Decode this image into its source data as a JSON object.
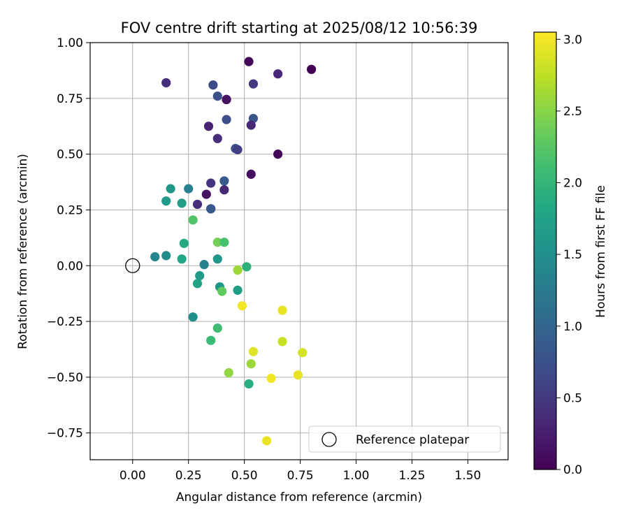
{
  "chart_data": {
    "type": "scatter",
    "title": "FOV centre drift starting at 2025/08/12 10:56:39",
    "xlabel": "Angular distance from reference (arcmin)",
    "ylabel": "Rotation from reference (arcmin)",
    "xlim": [
      -0.19,
      1.68
    ],
    "ylim": [
      -0.87,
      1.0
    ],
    "xticks": [
      "0.00",
      "0.25",
      "0.50",
      "0.75",
      "1.00",
      "1.25",
      "1.50"
    ],
    "xtick_values": [
      0,
      0.25,
      0.5,
      0.75,
      1.0,
      1.25,
      1.5
    ],
    "yticks": [
      "−0.75",
      "−0.50",
      "−0.25",
      "0.00",
      "0.25",
      "0.50",
      "0.75",
      "1.00"
    ],
    "ytick_values": [
      -0.75,
      -0.5,
      -0.25,
      0,
      0.25,
      0.5,
      0.75,
      1.0
    ],
    "grid": true,
    "colormap": "viridis",
    "colorbar": {
      "label": "Hours from first FF file",
      "range": [
        0,
        3.05
      ],
      "ticks": [
        "0.0",
        "0.5",
        "1.0",
        "1.5",
        "2.0",
        "2.5",
        "3.0"
      ],
      "tick_values": [
        0,
        0.5,
        1.0,
        1.5,
        2.0,
        2.5,
        3.0
      ]
    },
    "legend": {
      "label": "Reference platepar",
      "position": "lower-right"
    },
    "reference_point": {
      "x": 0.0,
      "y": 0.0
    },
    "points": [
      {
        "x": 0.52,
        "y": 0.915,
        "h": 0.05
      },
      {
        "x": 0.8,
        "y": 0.88,
        "h": 0.0
      },
      {
        "x": 0.65,
        "y": 0.86,
        "h": 0.35
      },
      {
        "x": 0.15,
        "y": 0.82,
        "h": 0.4
      },
      {
        "x": 0.54,
        "y": 0.815,
        "h": 0.5
      },
      {
        "x": 0.36,
        "y": 0.81,
        "h": 0.7
      },
      {
        "x": 0.38,
        "y": 0.76,
        "h": 0.75
      },
      {
        "x": 0.42,
        "y": 0.745,
        "h": 0.1
      },
      {
        "x": 0.42,
        "y": 0.745,
        "h": 0.15
      },
      {
        "x": 0.54,
        "y": 0.66,
        "h": 0.8
      },
      {
        "x": 0.42,
        "y": 0.655,
        "h": 0.75
      },
      {
        "x": 0.34,
        "y": 0.625,
        "h": 0.3
      },
      {
        "x": 0.53,
        "y": 0.63,
        "h": 0.35
      },
      {
        "x": 0.38,
        "y": 0.57,
        "h": 0.4
      },
      {
        "x": 0.46,
        "y": 0.525,
        "h": 0.75
      },
      {
        "x": 0.47,
        "y": 0.52,
        "h": 0.55
      },
      {
        "x": 0.65,
        "y": 0.5,
        "h": 0.05
      },
      {
        "x": 0.53,
        "y": 0.41,
        "h": 0.1
      },
      {
        "x": 0.41,
        "y": 0.38,
        "h": 0.85
      },
      {
        "x": 0.35,
        "y": 0.37,
        "h": 0.45
      },
      {
        "x": 0.17,
        "y": 0.345,
        "h": 1.6
      },
      {
        "x": 0.25,
        "y": 0.345,
        "h": 1.3
      },
      {
        "x": 0.41,
        "y": 0.34,
        "h": 0.35
      },
      {
        "x": 0.33,
        "y": 0.32,
        "h": 0.15
      },
      {
        "x": 0.15,
        "y": 0.29,
        "h": 1.65
      },
      {
        "x": 0.22,
        "y": 0.28,
        "h": 1.7
      },
      {
        "x": 0.29,
        "y": 0.275,
        "h": 0.4
      },
      {
        "x": 0.35,
        "y": 0.255,
        "h": 0.9
      },
      {
        "x": 0.35,
        "y": 0.255,
        "h": 0.85
      },
      {
        "x": 0.27,
        "y": 0.205,
        "h": 2.2
      },
      {
        "x": 0.38,
        "y": 0.105,
        "h": 2.4
      },
      {
        "x": 0.41,
        "y": 0.105,
        "h": 2.15
      },
      {
        "x": 0.23,
        "y": 0.1,
        "h": 1.85
      },
      {
        "x": 0.1,
        "y": 0.04,
        "h": 1.4
      },
      {
        "x": 0.15,
        "y": 0.045,
        "h": 1.45
      },
      {
        "x": 0.22,
        "y": 0.03,
        "h": 1.8
      },
      {
        "x": 0.38,
        "y": 0.03,
        "h": 1.6
      },
      {
        "x": 0.32,
        "y": 0.005,
        "h": 1.35
      },
      {
        "x": 0.51,
        "y": -0.005,
        "h": 1.95
      },
      {
        "x": 0.47,
        "y": -0.02,
        "h": 2.6
      },
      {
        "x": 0.3,
        "y": -0.045,
        "h": 1.65
      },
      {
        "x": 0.29,
        "y": -0.08,
        "h": 1.75
      },
      {
        "x": 0.39,
        "y": -0.095,
        "h": 1.6
      },
      {
        "x": 0.47,
        "y": -0.11,
        "h": 1.7
      },
      {
        "x": 0.4,
        "y": -0.115,
        "h": 2.3
      },
      {
        "x": 0.49,
        "y": -0.18,
        "h": 3.0
      },
      {
        "x": 0.67,
        "y": -0.2,
        "h": 2.95
      },
      {
        "x": 0.27,
        "y": -0.23,
        "h": 1.5
      },
      {
        "x": 0.38,
        "y": -0.28,
        "h": 2.1
      },
      {
        "x": 0.35,
        "y": -0.335,
        "h": 2.05
      },
      {
        "x": 0.67,
        "y": -0.34,
        "h": 2.8
      },
      {
        "x": 0.54,
        "y": -0.385,
        "h": 2.9
      },
      {
        "x": 0.76,
        "y": -0.39,
        "h": 2.85
      },
      {
        "x": 0.53,
        "y": -0.44,
        "h": 2.6
      },
      {
        "x": 0.43,
        "y": -0.48,
        "h": 2.55
      },
      {
        "x": 0.74,
        "y": -0.49,
        "h": 2.95
      },
      {
        "x": 0.62,
        "y": -0.505,
        "h": 3.0
      },
      {
        "x": 0.52,
        "y": -0.53,
        "h": 1.9
      },
      {
        "x": 0.6,
        "y": -0.785,
        "h": 2.95
      }
    ]
  }
}
